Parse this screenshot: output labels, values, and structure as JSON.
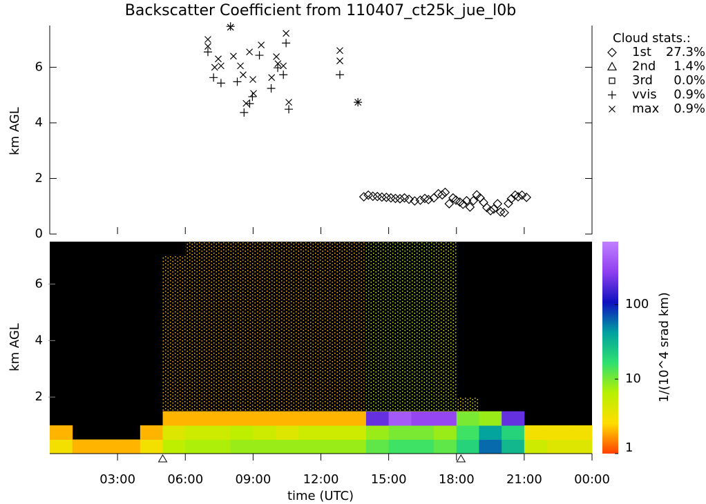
{
  "chart_data": [
    {
      "type": "scatter",
      "title": "Backscatter Coefficient from 110407_ct25k_jue_l0b",
      "ylabel": "km AGL",
      "xlim": [
        0,
        24
      ],
      "ylim": [
        0,
        7.5
      ],
      "yticks": [
        0,
        2,
        4,
        6
      ],
      "legend_title": "Cloud stats.:",
      "legend_position": "right",
      "series": [
        {
          "name": "1st",
          "marker": "diamond",
          "color": "#000000",
          "percent": 27.3,
          "percent_label": "27.3%",
          "x": [
            13.9,
            14.1,
            14.3,
            14.5,
            14.7,
            14.9,
            15.1,
            15.3,
            15.5,
            15.7,
            15.9,
            16.15,
            16.4,
            16.6,
            16.76,
            17.0,
            17.2,
            17.37,
            17.5,
            17.68,
            17.85,
            17.98,
            18.15,
            18.29,
            18.45,
            18.6,
            18.75,
            18.9,
            19.05,
            19.2,
            19.35,
            19.51,
            19.65,
            19.82,
            19.95,
            20.12,
            20.3,
            20.43,
            20.6,
            20.73,
            20.9,
            21.1
          ],
          "y": [
            1.34,
            1.4,
            1.36,
            1.35,
            1.33,
            1.32,
            1.3,
            1.28,
            1.27,
            1.3,
            1.25,
            1.19,
            1.22,
            1.28,
            1.24,
            1.3,
            1.45,
            1.41,
            1.5,
            1.09,
            1.3,
            1.22,
            1.15,
            1.07,
            1.2,
            0.97,
            1.2,
            1.41,
            1.3,
            1.14,
            0.95,
            0.84,
            0.9,
            1.09,
            0.8,
            0.77,
            1.1,
            1.27,
            1.4,
            1.34,
            1.4,
            1.32
          ]
        },
        {
          "name": "2nd",
          "marker": "triangle",
          "color": "#000000",
          "percent": 1.4,
          "percent_label": "1.4%",
          "x": [],
          "y": []
        },
        {
          "name": "3rd",
          "marker": "square",
          "color": "#000000",
          "percent": 0.0,
          "percent_label": "0.0%",
          "x": [],
          "y": []
        },
        {
          "name": "vvis",
          "marker": "plus",
          "color": "#000000",
          "percent": 0.9,
          "percent_label": "0.9%",
          "x": [
            7.0,
            7.25,
            7.58,
            8.0,
            8.3,
            8.6,
            8.85,
            8.97,
            9.28,
            9.8,
            10.09,
            10.34,
            10.46,
            10.58,
            12.84,
            13.64
          ],
          "y": [
            6.55,
            5.63,
            5.43,
            7.47,
            5.48,
            4.37,
            4.69,
            4.94,
            6.43,
            5.24,
            5.98,
            5.73,
            6.87,
            4.49,
            5.73,
            4.74
          ]
        },
        {
          "name": "max",
          "marker": "cross",
          "color": "#000000",
          "percent": 0.9,
          "percent_label": "0.9%",
          "x": [
            7.0,
            7.0,
            7.3,
            7.46,
            7.58,
            8.0,
            8.13,
            8.44,
            8.56,
            8.69,
            8.84,
            8.99,
            9.02,
            9.36,
            9.82,
            10.03,
            10.1,
            10.34,
            10.46,
            10.58,
            12.84,
            12.84,
            13.64
          ],
          "y": [
            7.0,
            6.75,
            6.0,
            6.3,
            6.05,
            7.44,
            6.4,
            6.05,
            5.73,
            4.7,
            6.55,
            5.56,
            5.06,
            6.8,
            5.63,
            6.38,
            6.13,
            6.05,
            7.22,
            4.74,
            6.6,
            6.23,
            4.74
          ]
        }
      ]
    },
    {
      "type": "heatmap",
      "xlabel": "time (UTC)",
      "ylabel": "km AGL",
      "xlim": [
        0,
        24
      ],
      "ylim": [
        0,
        7.5
      ],
      "xticks": [
        {
          "value": 3,
          "label": "03:00"
        },
        {
          "value": 6,
          "label": "06:00"
        },
        {
          "value": 9,
          "label": "09:00"
        },
        {
          "value": 12,
          "label": "12:00"
        },
        {
          "value": 15,
          "label": "15:00"
        },
        {
          "value": 18,
          "label": "18:00"
        },
        {
          "value": 21,
          "label": "21:00"
        },
        {
          "value": 24,
          "label": "00:00"
        }
      ],
      "yticks": [
        2,
        4,
        6
      ],
      "event_x": [
        5.0,
        18.2
      ],
      "zlabel": "1/(10^4 srad km)",
      "zscale": "log",
      "zlim": [
        1,
        700
      ],
      "zticks": [
        1,
        10,
        100
      ],
      "colormap": [
        "#ff4000",
        "#ffdd00",
        "#b8f000",
        "#30e070",
        "#00a0a0",
        "#1010c0",
        "#9040f0",
        "#c080ff"
      ],
      "xbins": [
        0,
        1,
        2,
        3,
        4,
        5,
        6,
        7,
        8,
        9,
        10,
        11,
        12,
        13,
        14,
        15,
        16,
        17,
        18,
        19,
        20,
        21,
        22,
        23,
        24
      ],
      "ybins": [
        0,
        0.5,
        1,
        1.5,
        2,
        2.5,
        3,
        3.5,
        4,
        4.5,
        5,
        5.5,
        6,
        6.5,
        7,
        7.5
      ],
      "z": [
        [
          3,
          2,
          2,
          2,
          3,
          6,
          7,
          7,
          8,
          8,
          8,
          8,
          8,
          8,
          12,
          15,
          15,
          12,
          20,
          60,
          30,
          5,
          4,
          4
        ],
        [
          2,
          null,
          null,
          null,
          2,
          4,
          5,
          5,
          6,
          5,
          4,
          5,
          5,
          5,
          8,
          10,
          10,
          8,
          15,
          40,
          20,
          3,
          3,
          3
        ],
        [
          null,
          null,
          null,
          null,
          null,
          2,
          2,
          2,
          2,
          2,
          2,
          2,
          2,
          2,
          200,
          400,
          300,
          300,
          10,
          8,
          200,
          null,
          null,
          null
        ],
        [
          null,
          null,
          null,
          null,
          null,
          2,
          2,
          2,
          2,
          2,
          2,
          2,
          2,
          2,
          6,
          6,
          6,
          5,
          3,
          null,
          null,
          null,
          null,
          null
        ],
        [
          null,
          null,
          null,
          null,
          null,
          2,
          2,
          2,
          2,
          2,
          2,
          2,
          2,
          2,
          5,
          6,
          6,
          4,
          null,
          null,
          null,
          null,
          null,
          null
        ],
        [
          null,
          null,
          null,
          null,
          null,
          2,
          2,
          2,
          2,
          2,
          2,
          2,
          2,
          2,
          5,
          6,
          6,
          4,
          null,
          null,
          null,
          null,
          null,
          null
        ],
        [
          null,
          null,
          null,
          null,
          null,
          2,
          2,
          2,
          2,
          2,
          2,
          2,
          2,
          2,
          5,
          6,
          6,
          4,
          null,
          null,
          null,
          null,
          null,
          null
        ],
        [
          null,
          null,
          null,
          null,
          null,
          2,
          2,
          2,
          2,
          2,
          2,
          2,
          2,
          2,
          5,
          6,
          6,
          4,
          null,
          null,
          null,
          null,
          null,
          null
        ],
        [
          null,
          null,
          null,
          null,
          null,
          2,
          2,
          2,
          2,
          2,
          2,
          2,
          2,
          2,
          5,
          6,
          6,
          4,
          null,
          null,
          null,
          null,
          null,
          null
        ],
        [
          null,
          null,
          null,
          null,
          null,
          2,
          2,
          2,
          2,
          2,
          2,
          2,
          2,
          2,
          5,
          6,
          6,
          4,
          null,
          null,
          null,
          null,
          null,
          null
        ],
        [
          null,
          null,
          null,
          null,
          null,
          2,
          2,
          2,
          2,
          2,
          2,
          2,
          2,
          2,
          5,
          6,
          6,
          4,
          null,
          null,
          null,
          null,
          null,
          null
        ],
        [
          null,
          null,
          null,
          null,
          null,
          2,
          2,
          2,
          2,
          2,
          2,
          2,
          2,
          2,
          5,
          6,
          6,
          4,
          null,
          null,
          null,
          null,
          null,
          null
        ],
        [
          null,
          null,
          null,
          null,
          null,
          2,
          2,
          2,
          2,
          2,
          2,
          2,
          2,
          2,
          5,
          6,
          6,
          4,
          null,
          null,
          null,
          null,
          null,
          null
        ],
        [
          null,
          null,
          null,
          null,
          null,
          2,
          2,
          2,
          2,
          2,
          2,
          2,
          2,
          2,
          5,
          6,
          6,
          4,
          null,
          null,
          null,
          null,
          null,
          null
        ],
        [
          null,
          null,
          null,
          null,
          null,
          null,
          2,
          2,
          2,
          2,
          2,
          2,
          2,
          2,
          5,
          6,
          6,
          4,
          null,
          null,
          null,
          null,
          null,
          null
        ]
      ]
    }
  ]
}
